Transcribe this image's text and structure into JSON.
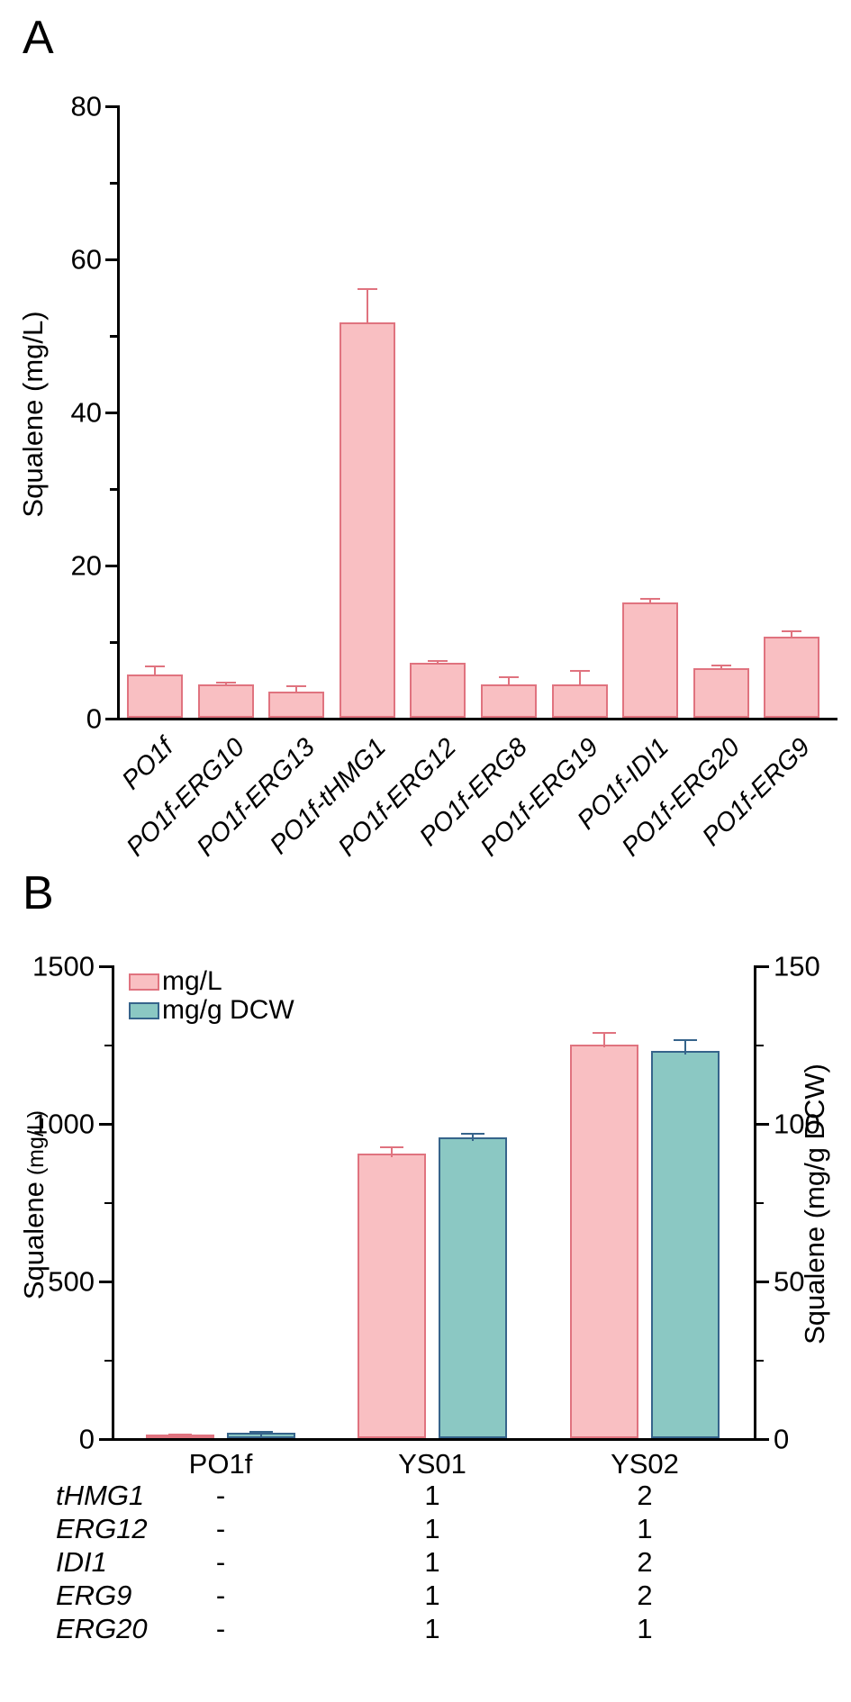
{
  "panels": {
    "a": {
      "letter": "A",
      "ylabel": "Squalene (mg/L)"
    },
    "b": {
      "letter": "B",
      "ylabel_left_main": "Squalene",
      "ylabel_left_unit": " (mg/L)",
      "ylabel_right": "Squalene (mg/g DCW)"
    }
  },
  "legend": {
    "items": [
      {
        "label": "mg/L",
        "fill": "#f9bfc2",
        "edge": "#e0737f"
      },
      {
        "label": "mg/g DCW",
        "fill": "#8bc8c3",
        "edge": "#36648b"
      }
    ]
  },
  "chart_data": [
    {
      "panel": "A",
      "type": "bar",
      "ylabel": "Squalene (mg/L)",
      "ylim": [
        0,
        80
      ],
      "yticks_major": [
        0,
        20,
        40,
        60,
        80
      ],
      "yticks_minor": [
        10,
        30,
        50,
        70
      ],
      "grid": false,
      "categories": [
        "PO1f",
        "PO1f-ERG10",
        "PO1f-ERG13",
        "PO1f-tHMG1",
        "PO1f-ERG12",
        "PO1f-ERG8",
        "PO1f-ERG19",
        "PO1f-IDI1",
        "PO1f-ERG20",
        "PO1f-ERG9"
      ],
      "values": [
        5.6,
        4.3,
        3.4,
        51.6,
        7.2,
        4.4,
        4.4,
        15.1,
        6.5,
        10.6
      ],
      "errors": [
        1.2,
        0.4,
        0.8,
        4.5,
        0.3,
        1.0,
        1.8,
        0.5,
        0.5,
        0.8
      ],
      "bar_fill": "#f9bfc2",
      "bar_edge": "#e0737f"
    },
    {
      "panel": "B",
      "type": "bar",
      "categories": [
        "PO1f",
        "YS01",
        "YS02"
      ],
      "series": [
        {
          "name": "mg/L",
          "axis": "left",
          "values": [
            12,
            903,
            1250
          ],
          "errors": [
            3,
            23,
            38
          ],
          "fill": "#f9bfc2",
          "edge": "#e0737f"
        },
        {
          "name": "mg/g DCW",
          "axis": "right",
          "values": [
            1.8,
            95.5,
            123
          ],
          "errors": [
            0.4,
            1.5,
            3.5
          ],
          "fill": "#8bc8c3",
          "edge": "#36648b"
        }
      ],
      "ylabel_left": "Squalene (mg/L)",
      "ylabel_right": "Squalene (mg/g DCW)",
      "ylim_left": [
        0,
        1500
      ],
      "yticks_left_major": [
        0,
        500,
        1000,
        1500
      ],
      "yticks_left_minor": [
        250,
        750,
        1250
      ],
      "ylim_right": [
        0,
        150
      ],
      "yticks_right_major": [
        0,
        50,
        100,
        150
      ],
      "yticks_right_minor": [
        25,
        75,
        125
      ],
      "grid": false,
      "legend_position": "top-left-inside",
      "legend": [
        "mg/L",
        "mg/g DCW"
      ]
    }
  ],
  "table": {
    "columns": [
      "PO1f",
      "YS01",
      "YS02"
    ],
    "rows": [
      {
        "gene": "tHMG1",
        "values": [
          "-",
          "1",
          "2"
        ]
      },
      {
        "gene": "ERG12",
        "values": [
          "-",
          "1",
          "1"
        ]
      },
      {
        "gene": "IDI1",
        "values": [
          "-",
          "1",
          "2"
        ]
      },
      {
        "gene": "ERG9",
        "values": [
          "-",
          "1",
          "2"
        ]
      },
      {
        "gene": "ERG20",
        "values": [
          "-",
          "1",
          "1"
        ]
      }
    ]
  }
}
